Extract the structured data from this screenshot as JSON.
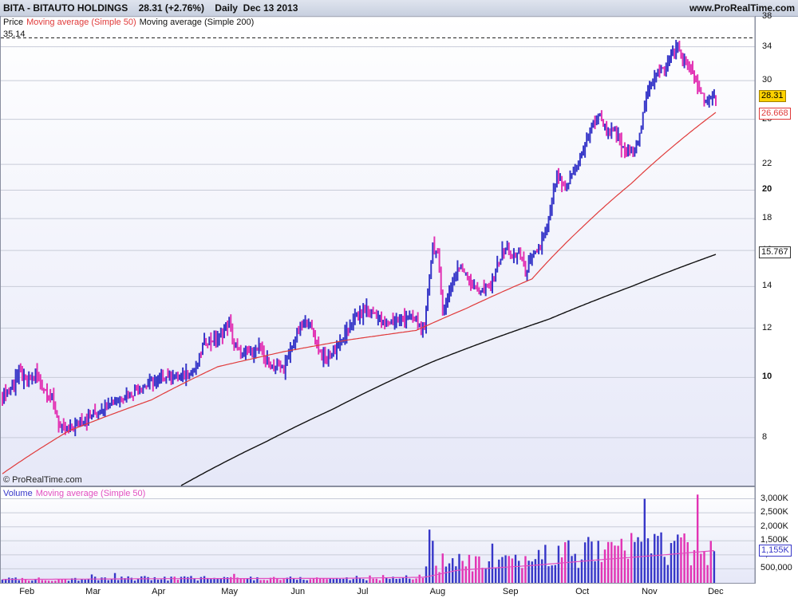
{
  "header": {
    "symbol": "BITA - BITAUTO HOLDINGS",
    "quote": "28.31 (+2.76%)",
    "period": "Daily  Dec 13 2013",
    "site": "www.ProRealTime.com"
  },
  "price_legend": {
    "price": "Price",
    "ma50": "Moving average (Simple 50)",
    "ma200": "Moving average (Simple 200)",
    "high_marker": "35.14"
  },
  "volume_legend": {
    "volume": "Volume",
    "ma50": "Moving average (Simple 50)"
  },
  "watermark": "© ProRealTime.com",
  "colors": {
    "up": "#3636c8",
    "down": "#e233b4",
    "ma50": "#e03a3a",
    "ma200": "#111111",
    "vol_ma": "#e24ec0",
    "grid": "#c8ccd8",
    "pane_bg_top": "#ffffff",
    "pane_bg_bottom": "#e6e8f8"
  },
  "chart_data": {
    "type": "ohlc-bar",
    "scale": "log",
    "price_axis": {
      "ticks": [
        "38",
        "34",
        "30",
        "26",
        "22",
        "20",
        "18",
        "16",
        "14",
        "12",
        "10",
        "8"
      ],
      "bold": [
        "20",
        "10"
      ],
      "ylim": [
        6.7,
        38
      ]
    },
    "volume_axis": {
      "ticks": [
        "3,000K",
        "2,500K",
        "2,000K",
        "1,500K",
        "1,000K",
        "500,000"
      ],
      "ylim": [
        0,
        3300
      ]
    },
    "x_labels": [
      "Feb",
      "Mar",
      "Apr",
      "May",
      "Jun",
      "Jul",
      "Aug",
      "Sep",
      "Oct",
      "Nov",
      "Dec"
    ],
    "last_price": "28.31",
    "ma50_last": "26.668",
    "ma200_last": "15.767",
    "vol_ma_last": "1,155K",
    "price_anchors": [
      [
        0,
        9.4
      ],
      [
        5,
        9.6
      ],
      [
        10,
        10.2
      ],
      [
        15,
        9.8
      ],
      [
        20,
        10.1
      ],
      [
        25,
        9.6
      ],
      [
        30,
        9.2
      ],
      [
        35,
        8.3
      ],
      [
        38,
        8.2
      ],
      [
        42,
        8.3
      ],
      [
        47,
        8.5
      ],
      [
        52,
        8.6
      ],
      [
        57,
        8.8
      ],
      [
        62,
        9.0
      ],
      [
        67,
        9.2
      ],
      [
        72,
        9.3
      ],
      [
        77,
        9.4
      ],
      [
        82,
        9.6
      ],
      [
        87,
        9.7
      ],
      [
        92,
        9.9
      ],
      [
        97,
        10.0
      ],
      [
        102,
        10.1
      ],
      [
        107,
        10.0
      ],
      [
        112,
        10.2
      ],
      [
        117,
        10.3
      ],
      [
        122,
        11.4
      ],
      [
        127,
        11.5
      ],
      [
        132,
        11.6
      ],
      [
        137,
        12.3
      ],
      [
        140,
        11.2
      ],
      [
        145,
        10.9
      ],
      [
        150,
        11.0
      ],
      [
        155,
        11.1
      ],
      [
        160,
        10.6
      ],
      [
        165,
        10.4
      ],
      [
        170,
        10.3
      ],
      [
        175,
        11.2
      ],
      [
        180,
        12.0
      ],
      [
        185,
        12.3
      ],
      [
        190,
        11.3
      ],
      [
        195,
        10.6
      ],
      [
        200,
        11.0
      ],
      [
        205,
        11.4
      ],
      [
        210,
        12.1
      ],
      [
        215,
        12.6
      ],
      [
        220,
        12.9
      ],
      [
        225,
        12.7
      ],
      [
        230,
        12.2
      ],
      [
        235,
        12.3
      ],
      [
        240,
        12.4
      ],
      [
        245,
        12.5
      ],
      [
        250,
        12.4
      ],
      [
        255,
        11.8
      ],
      [
        258,
        14.6
      ],
      [
        260,
        16.4
      ],
      [
        263,
        15.7
      ],
      [
        266,
        12.8
      ],
      [
        270,
        13.6
      ],
      [
        275,
        15.0
      ],
      [
        280,
        14.8
      ],
      [
        285,
        13.9
      ],
      [
        290,
        13.8
      ],
      [
        295,
        14.0
      ],
      [
        300,
        15.4
      ],
      [
        305,
        16.2
      ],
      [
        308,
        15.5
      ],
      [
        312,
        15.9
      ],
      [
        316,
        14.8
      ],
      [
        320,
        15.6
      ],
      [
        325,
        16.2
      ],
      [
        330,
        17.8
      ],
      [
        335,
        21.2
      ],
      [
        340,
        20.0
      ],
      [
        345,
        21.5
      ],
      [
        350,
        22.8
      ],
      [
        355,
        25.0
      ],
      [
        360,
        26.5
      ],
      [
        365,
        25.0
      ],
      [
        370,
        24.8
      ],
      [
        375,
        23.2
      ],
      [
        380,
        23.0
      ],
      [
        385,
        24.5
      ],
      [
        390,
        29.0
      ],
      [
        395,
        31.0
      ],
      [
        400,
        31.2
      ],
      [
        405,
        33.5
      ],
      [
        408,
        34.0
      ],
      [
        412,
        32.5
      ],
      [
        416,
        31.0
      ],
      [
        420,
        29.5
      ],
      [
        424,
        28.0
      ],
      [
        428,
        27.8
      ],
      [
        431,
        28.31
      ]
    ],
    "ma50_anchors": [
      [
        0,
        7.0
      ],
      [
        40,
        8.2
      ],
      [
        90,
        9.2
      ],
      [
        130,
        10.4
      ],
      [
        170,
        11.0
      ],
      [
        210,
        11.5
      ],
      [
        250,
        11.9
      ],
      [
        280,
        12.9
      ],
      [
        320,
        14.4
      ],
      [
        350,
        17.4
      ],
      [
        380,
        20.5
      ],
      [
        405,
        23.5
      ],
      [
        431,
        26.668
      ]
    ],
    "ma200_anchors": [
      [
        108,
        6.7
      ],
      [
        160,
        7.9
      ],
      [
        200,
        8.9
      ],
      [
        260,
        10.6
      ],
      [
        330,
        12.4
      ],
      [
        380,
        14.0
      ],
      [
        431,
        15.767
      ]
    ],
    "volume_anchors": [
      [
        0,
        150
      ],
      [
        60,
        180
      ],
      [
        120,
        200
      ],
      [
        200,
        180
      ],
      [
        255,
        250
      ],
      [
        258,
        1900
      ],
      [
        262,
        900
      ],
      [
        300,
        700
      ],
      [
        330,
        1200
      ],
      [
        360,
        1300
      ],
      [
        380,
        1500
      ],
      [
        400,
        1500
      ],
      [
        431,
        1155
      ]
    ],
    "volume_spikes": [
      [
        34,
        120
      ],
      [
        54,
        300
      ],
      [
        68,
        350
      ],
      [
        140,
        320
      ],
      [
        258,
        1900
      ],
      [
        260,
        1500
      ],
      [
        296,
        1400
      ],
      [
        340,
        1450
      ],
      [
        345,
        1900
      ],
      [
        360,
        1500
      ],
      [
        365,
        2900
      ],
      [
        388,
        3000
      ],
      [
        398,
        1800
      ],
      [
        420,
        3150
      ],
      [
        427,
        1400
      ],
      [
        431,
        1155
      ]
    ],
    "vol_ma_anchors": [
      [
        0,
        120
      ],
      [
        100,
        150
      ],
      [
        200,
        160
      ],
      [
        255,
        200
      ],
      [
        275,
        450
      ],
      [
        320,
        620
      ],
      [
        360,
        820
      ],
      [
        400,
        1000
      ],
      [
        431,
        1155
      ]
    ]
  }
}
